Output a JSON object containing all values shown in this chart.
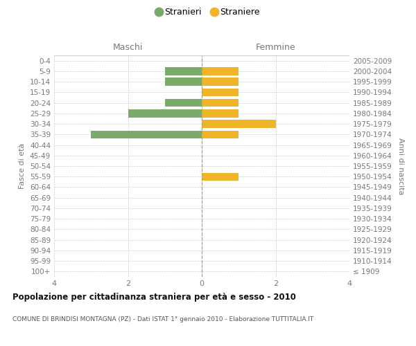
{
  "age_groups": [
    "100+",
    "95-99",
    "90-94",
    "85-89",
    "80-84",
    "75-79",
    "70-74",
    "65-69",
    "60-64",
    "55-59",
    "50-54",
    "45-49",
    "40-44",
    "35-39",
    "30-34",
    "25-29",
    "20-24",
    "15-19",
    "10-14",
    "5-9",
    "0-4"
  ],
  "birth_years": [
    "≤ 1909",
    "1910-1914",
    "1915-1919",
    "1920-1924",
    "1925-1929",
    "1930-1934",
    "1935-1939",
    "1940-1944",
    "1945-1949",
    "1950-1954",
    "1955-1959",
    "1960-1964",
    "1965-1969",
    "1970-1974",
    "1975-1979",
    "1980-1984",
    "1985-1989",
    "1990-1994",
    "1995-1999",
    "2000-2004",
    "2005-2009"
  ],
  "males": [
    0,
    0,
    0,
    0,
    0,
    0,
    0,
    0,
    0,
    0,
    0,
    0,
    0,
    3,
    0,
    2,
    1,
    0,
    1,
    1,
    0
  ],
  "females": [
    0,
    0,
    0,
    0,
    0,
    0,
    0,
    0,
    0,
    1,
    0,
    0,
    0,
    1,
    2,
    1,
    1,
    1,
    1,
    1,
    0
  ],
  "male_color": "#7aab6a",
  "female_color": "#f0b429",
  "grid_color": "#cccccc",
  "bg_color": "#ffffff",
  "title": "Popolazione per cittadinanza straniera per età e sesso - 2010",
  "subtitle": "COMUNE DI BRINDISI MONTAGNA (PZ) - Dati ISTAT 1° gennaio 2010 - Elaborazione TUTTITALIA.IT",
  "ylabel_left": "Fasce di età",
  "ylabel_right": "Anni di nascita",
  "label_maschi": "Maschi",
  "label_femmine": "Femmine",
  "legend_male": "Stranieri",
  "legend_female": "Straniere",
  "xlim": 4,
  "bar_height": 0.75
}
